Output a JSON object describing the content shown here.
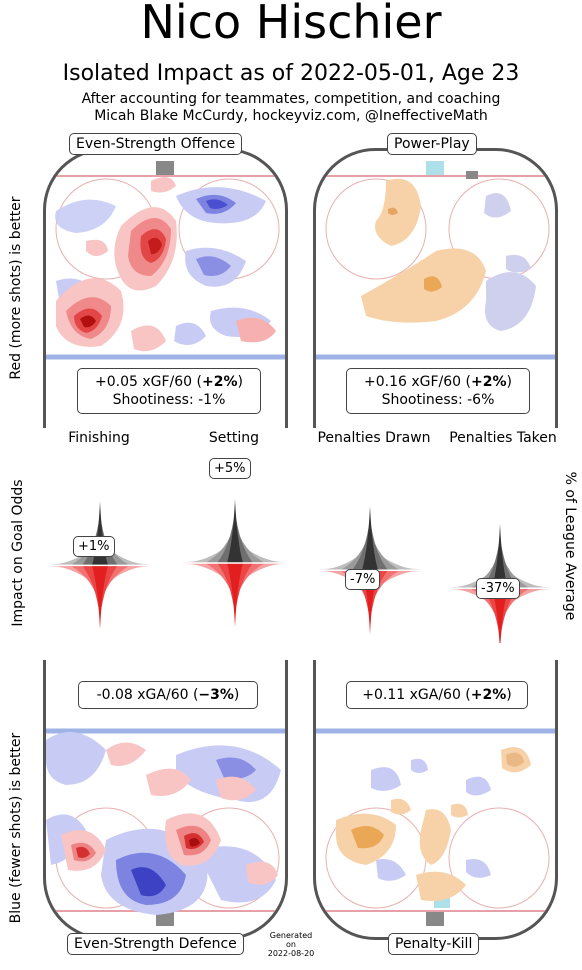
{
  "header": {
    "title": "Nico Hischier",
    "subtitle": "Isolated Impact as of 2022-05-01, Age 23",
    "credit_line1": "After accounting for teammates, competition, and coaching",
    "credit_line2": "Micah Blake McCurdy, hockeyviz.com, @IneffectiveMath"
  },
  "side_labels": {
    "top_left": "Red (more shots) is better",
    "middle_left": "Impact on Goal Odds",
    "bottom_left": "Blue (fewer shots) is better",
    "middle_right": "% of League Average"
  },
  "panels": {
    "es_offence": {
      "label": "Even-Strength Offence",
      "stat_value": "+0.05 xGF/60 (",
      "stat_pct": "+2%",
      "stat_close": ")",
      "shootiness": "Shootiness: -1%"
    },
    "power_play": {
      "label": "Power-Play",
      "stat_value": "+0.16 xGF/60 (",
      "stat_pct": "+2%",
      "stat_close": ")",
      "shootiness": "Shootiness: -6%"
    },
    "es_defence": {
      "label": "Even-Strength Defence",
      "stat_value": "-0.08 xGA/60 (",
      "stat_pct": "−3%",
      "stat_close": ")"
    },
    "penalty_kill": {
      "label": "Penalty-Kill",
      "stat_value": "+0.11 xGA/60 (",
      "stat_pct": "+2%",
      "stat_close": ")"
    }
  },
  "generated": {
    "line1": "Generated",
    "line2": "on",
    "line3": "2022-08-20"
  },
  "chart_data": {
    "type": "violin",
    "categories": [
      "Finishing",
      "Setting",
      "Penalties Drawn",
      "Penalties Taken"
    ],
    "values_pct": [
      1,
      5,
      -7,
      -37
    ],
    "value_labels": [
      "+1%",
      "+5%",
      "-7%",
      "-37%"
    ],
    "ylabel": "Impact on Goal Odds",
    "ylabel_right": "% of League Average",
    "colors": {
      "positive": "#e8323c",
      "negative_gray": "#3a3a3a",
      "light_red": "#f6b3b3",
      "light_gray": "#cfcfcf"
    }
  }
}
